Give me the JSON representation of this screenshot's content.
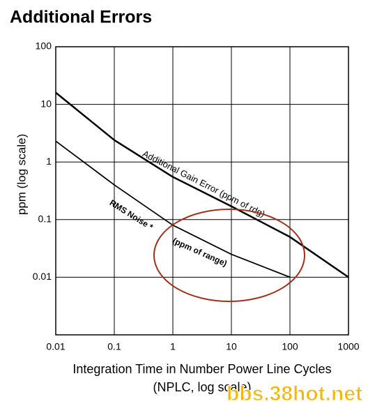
{
  "chart_data": {
    "type": "line",
    "title": "Additional Errors",
    "x_label": "Integration Time in Number Power Line Cycles",
    "x_label_2": "(NPLC, log scale)",
    "y_label": "ppm (log scale)",
    "xscale": "log",
    "yscale": "log",
    "xlim": [
      0.01,
      1000
    ],
    "ylim": [
      0.001,
      100
    ],
    "xticks": [
      0.01,
      0.1,
      1,
      10,
      100,
      1000
    ],
    "yticks": [
      0.01,
      0.1,
      1,
      10,
      100
    ],
    "grid": true,
    "series": [
      {
        "name": "Additional Gain Error (ppm of rdg)",
        "color": "#000000",
        "x": [
          0.01,
          0.1,
          1,
          10,
          100,
          1000
        ],
        "values": [
          16,
          2.4,
          0.55,
          0.17,
          0.05,
          0.01
        ]
      },
      {
        "name": "RMS Noise *",
        "name_2": "(ppm of range)",
        "color": "#000000",
        "x": [
          0.01,
          0.1,
          1,
          10,
          100
        ],
        "values": [
          2.3,
          0.4,
          0.08,
          0.025,
          0.01
        ]
      }
    ],
    "watermark": "bbs.38hot.net"
  }
}
